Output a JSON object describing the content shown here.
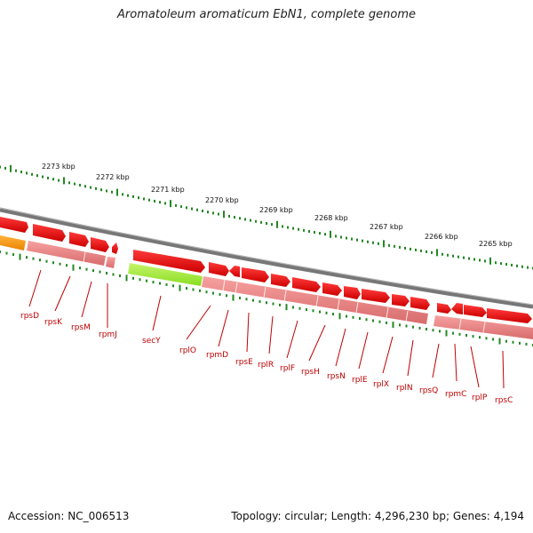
{
  "title": "Aromatoleum aromaticum EbN1, complete genome",
  "accession": "Accession: NC_006513",
  "summary": "Topology: circular; Length: 4,296,230 bp; Genes: 4,194",
  "kbp_labels": [
    "2273 kbp",
    "2272 kbp",
    "2271 kbp",
    "2270 kbp",
    "2269 kbp",
    "2268 kbp",
    "2267 kbp",
    "2266 kbp",
    "2265 kbp"
  ],
  "gene_labels": [
    "rpsD",
    "rpsK",
    "rpsM",
    "rpmJ",
    "secY",
    "rplO",
    "rpmD",
    "rpsE",
    "rplR",
    "rplF",
    "rpsH",
    "rpsN",
    "rplE",
    "rplX",
    "rplN",
    "rpsQ",
    "rpmC",
    "rplP",
    "rpsC"
  ],
  "colors": {
    "gene_forward": "#ff0000",
    "gene_highlight_green": "#99ee33",
    "gene_highlight_orange": "#ff9900",
    "cds_band": "#f08080",
    "backbone": "#888888",
    "tick": "#228822",
    "label": "#c00000"
  }
}
